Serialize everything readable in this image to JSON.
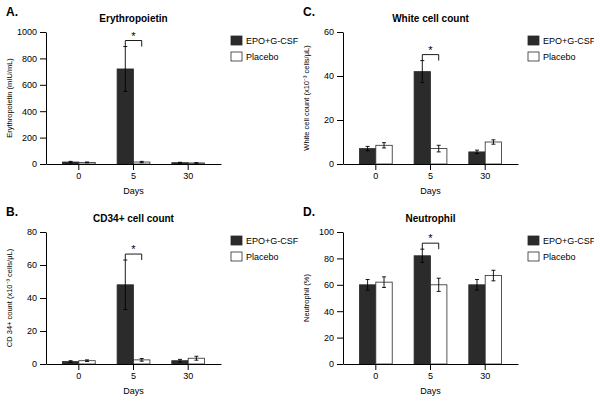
{
  "chart_data": [
    {
      "type": "bar",
      "title": "Erythropoietin",
      "x_label": "Days",
      "y_label": "Erythropoietin (mIU/mL)",
      "categories": [
        "0",
        "5",
        "30"
      ],
      "series": [
        {
          "name": "EPO+G-CSF",
          "color": "#2b2b2b",
          "values": [
            15,
            720,
            10
          ],
          "errors": [
            5,
            170,
            3
          ]
        },
        {
          "name": "Placebo",
          "color": "#ffffff",
          "values": [
            12,
            15,
            8
          ],
          "errors": [
            3,
            5,
            2
          ]
        }
      ],
      "color": "#2b2b2b",
      "ylim": [
        0,
        1000
      ],
      "yticks": [
        0,
        200,
        400,
        600,
        800,
        1000
      ],
      "annotations": [
        {
          "text": "A."
        },
        {
          "text": "*",
          "category": "5"
        }
      ],
      "grid": false,
      "legend": "right"
    },
    {
      "type": "bar",
      "title": "CD34+ cell count",
      "x_label": "Days",
      "y_label": "CD 34+ count (x10⁻³ cells/μL)",
      "categories": [
        "0",
        "5",
        "30"
      ],
      "series": [
        {
          "name": "EPO+G-CSF",
          "color": "#2b2b2b",
          "values": [
            1.5,
            48,
            2.0
          ],
          "errors": [
            0.5,
            15,
            0.8
          ]
        },
        {
          "name": "Placebo",
          "color": "#ffffff",
          "values": [
            2.0,
            2.5,
            3.5
          ],
          "errors": [
            0.5,
            0.8,
            1.2
          ]
        }
      ],
      "color": "#2b2b2b",
      "ylim": [
        0,
        80
      ],
      "yticks": [
        0,
        20,
        40,
        60,
        80
      ],
      "annotations": [
        {
          "text": "B."
        },
        {
          "text": "*",
          "category": "5"
        }
      ],
      "grid": false,
      "legend": "right"
    },
    {
      "type": "bar",
      "title": "White cell count",
      "x_label": "Days",
      "y_label": "White cell count (x10⁻³ cells/μL)",
      "categories": [
        "0",
        "5",
        "30"
      ],
      "series": [
        {
          "name": "EPO+G-CSF",
          "color": "#2b2b2b",
          "values": [
            7,
            42,
            5.5
          ],
          "errors": [
            1.0,
            5,
            0.8
          ]
        },
        {
          "name": "Placebo",
          "color": "#ffffff",
          "values": [
            8.5,
            7,
            10
          ],
          "errors": [
            1.2,
            1.5,
            1.0
          ]
        }
      ],
      "color": "#2b2b2b",
      "ylim": [
        0,
        60
      ],
      "yticks": [
        0,
        20,
        40,
        60
      ],
      "annotations": [
        {
          "text": "C."
        },
        {
          "text": "*",
          "category": "5"
        }
      ],
      "grid": false,
      "legend": "right"
    },
    {
      "type": "bar",
      "title": "Neutrophil",
      "x_label": "Days",
      "y_label": "Neutrophil (%)",
      "categories": [
        "0",
        "5",
        "30"
      ],
      "series": [
        {
          "name": "EPO+G-CSF",
          "color": "#2b2b2b",
          "values": [
            60,
            82,
            60
          ],
          "errors": [
            4,
            5,
            4
          ]
        },
        {
          "name": "Placebo",
          "color": "#ffffff",
          "values": [
            62,
            60,
            67
          ],
          "errors": [
            4,
            5,
            4
          ]
        }
      ],
      "color": "#2b2b2b",
      "ylim": [
        0,
        100
      ],
      "yticks": [
        0,
        20,
        40,
        60,
        80,
        100
      ],
      "annotations": [
        {
          "text": "D."
        },
        {
          "text": "*",
          "category": "5"
        }
      ],
      "grid": false,
      "legend": "right"
    }
  ]
}
